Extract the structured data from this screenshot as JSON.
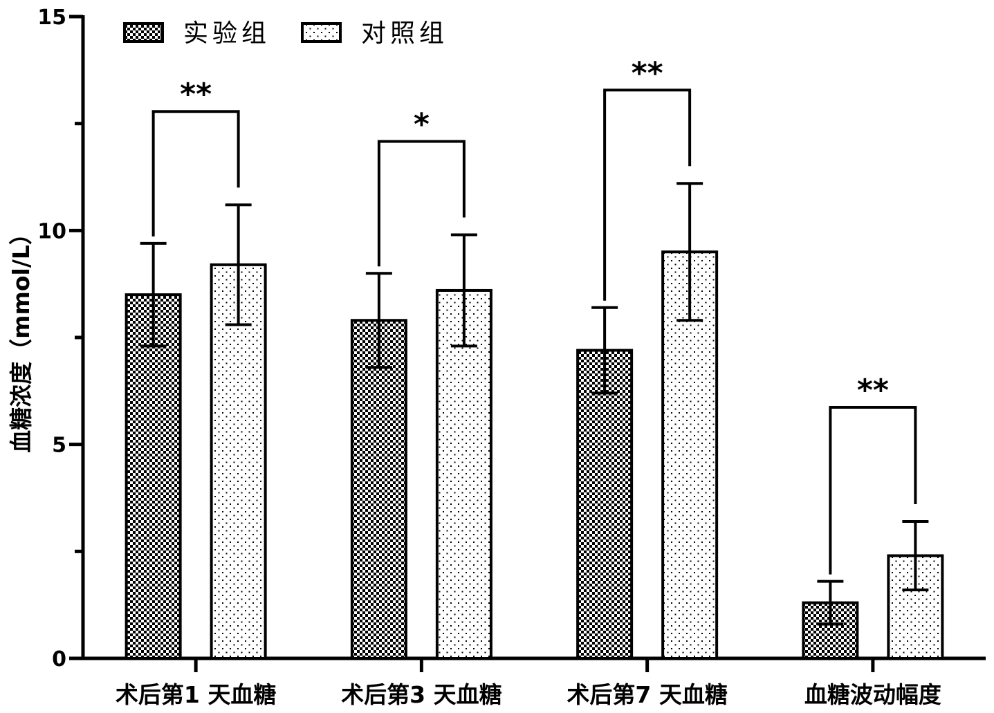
{
  "chart_data": {
    "type": "bar",
    "categories": [
      "术后第1 天血糖",
      "术后第3 天血糖",
      "术后第7 天血糖",
      "血糖波动幅度"
    ],
    "series": [
      {
        "name": "实验组",
        "values": [
          8.5,
          7.9,
          7.2,
          1.3
        ],
        "errors": [
          1.2,
          1.1,
          1.0,
          0.5
        ],
        "pattern": "checker"
      },
      {
        "name": "对照组",
        "values": [
          9.2,
          8.6,
          9.5,
          2.4
        ],
        "errors": [
          1.4,
          1.3,
          1.6,
          0.8
        ],
        "pattern": "dots"
      }
    ],
    "significance": [
      "**",
      "*",
      "**",
      "**"
    ],
    "title": "",
    "xlabel": "",
    "ylabel": "血糖浓度（mmol/L）",
    "ylim": [
      0,
      15
    ],
    "yticks": [
      "0",
      "5",
      "10",
      "15"
    ],
    "legend_position": "top-left",
    "grid": false
  }
}
